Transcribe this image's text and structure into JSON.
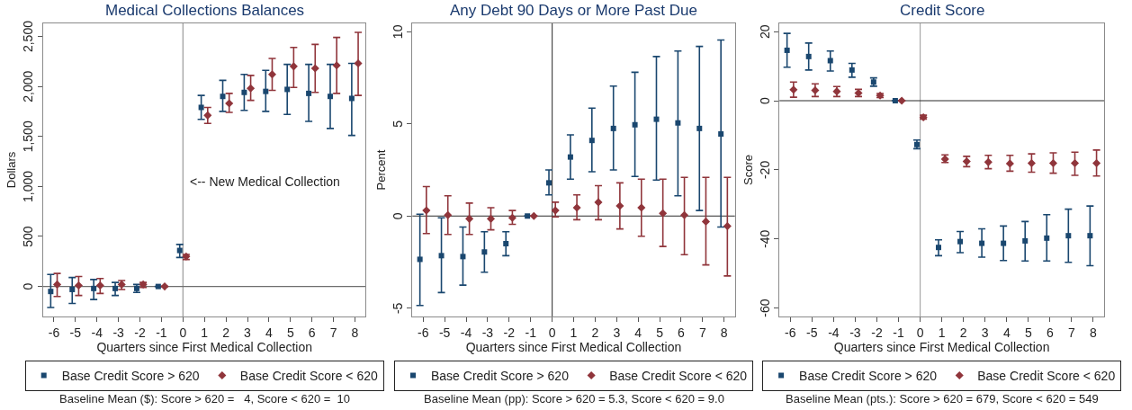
{
  "chart_data": [
    {
      "type": "scatter",
      "title": "Medical Collections Balances",
      "xlabel": "Quarters since First Medical Collection",
      "ylabel": "Dollars",
      "xlim": [
        -6.5,
        8.5
      ],
      "xticks": [
        -6,
        -5,
        -4,
        -3,
        -2,
        -1,
        0,
        1,
        2,
        3,
        4,
        5,
        6,
        7,
        8
      ],
      "ylim": [
        -300,
        2630
      ],
      "yticks": [
        0,
        500,
        {
          "value": 1000,
          "label": "1,000"
        },
        {
          "value": 1500,
          "label": "1,500"
        },
        {
          "value": 2000,
          "label": "2,000"
        },
        {
          "value": 2500,
          "label": "2,500"
        }
      ],
      "grid": false,
      "legend": "bottom",
      "series": [
        {
          "name": "Base Credit Score > 620",
          "color": "#1a476f",
          "marker": "square",
          "x": [
            -6.15,
            -5.15,
            -4.15,
            -3.15,
            -2.15,
            -1.15,
            -0.15,
            0.85,
            1.85,
            2.85,
            3.85,
            4.85,
            5.85,
            6.85,
            7.85
          ],
          "values": [
            -50,
            -30,
            -20,
            -20,
            -20,
            0,
            360,
            1790,
            1900,
            1940,
            1950,
            1970,
            1930,
            1900,
            1880
          ],
          "errors": [
            [
              -210,
              120
            ],
            [
              -170,
              90
            ],
            [
              -130,
              70
            ],
            [
              -90,
              40
            ],
            [
              -60,
              20
            ],
            null,
            [
              290,
              420
            ],
            [
              1670,
              1910
            ],
            [
              1750,
              2060
            ],
            [
              1760,
              2120
            ],
            [
              1750,
              2160
            ],
            [
              1720,
              2220
            ],
            [
              1650,
              2220
            ],
            [
              1580,
              2220
            ],
            [
              1510,
              2230
            ]
          ]
        },
        {
          "name": "Base Credit Score < 620",
          "color": "#90353b",
          "marker": "diamond",
          "x": [
            -5.85,
            -4.85,
            -3.85,
            -2.85,
            -1.85,
            -0.85,
            0.15,
            1.15,
            2.15,
            3.15,
            4.15,
            5.15,
            6.15,
            7.15,
            8.15
          ],
          "values": [
            20,
            10,
            10,
            20,
            20,
            0,
            300,
            1710,
            1830,
            1980,
            2120,
            2200,
            2180,
            2210,
            2230
          ],
          "errors": [
            [
              -100,
              130
            ],
            [
              -90,
              100
            ],
            [
              -70,
              80
            ],
            [
              -30,
              60
            ],
            [
              -10,
              40
            ],
            null,
            [
              270,
              320
            ],
            [
              1630,
              1790
            ],
            [
              1740,
              1930
            ],
            [
              1860,
              2110
            ],
            [
              1960,
              2280
            ],
            [
              1990,
              2390
            ],
            [
              1940,
              2420
            ],
            [
              1930,
              2490
            ],
            [
              1910,
              2540
            ]
          ]
        }
      ],
      "ref_lines": [
        {
          "axis": "x",
          "value": 0,
          "color": "#9a9a9a"
        },
        {
          "axis": "y",
          "value": 0,
          "color": "#6e6e6e"
        }
      ],
      "annotations": [
        {
          "text": "<-- New Medical Collection",
          "x": 0,
          "y": 1045
        },
        "Baseline Mean ($): Score > 620 =   4, Score < 620 =  10"
      ]
    },
    {
      "type": "scatter",
      "title": "Any Debt 90 Days or More Past Due",
      "xlabel": "Quarters since First Medical Collection",
      "ylabel": "Percent",
      "xlim": [
        -6.5,
        8.5
      ],
      "xticks": [
        -6,
        -5,
        -4,
        -3,
        -2,
        -1,
        0,
        1,
        2,
        3,
        4,
        5,
        6,
        7,
        8
      ],
      "ylim": [
        -5.45,
        10.45
      ],
      "yticks": [
        -5,
        0,
        5,
        10
      ],
      "grid": false,
      "legend": "bottom",
      "series": [
        {
          "name": "Base Credit Score > 620",
          "color": "#1a476f",
          "marker": "square",
          "x": [
            -6.15,
            -5.15,
            -4.15,
            -3.15,
            -2.15,
            -1.15,
            -0.15,
            0.85,
            1.85,
            2.85,
            3.85,
            4.85,
            5.85,
            6.85,
            7.85
          ],
          "values": [
            -2.35,
            -2.15,
            -2.2,
            -1.95,
            -1.5,
            0,
            1.8,
            3.2,
            4.1,
            4.75,
            4.95,
            5.25,
            5.05,
            4.75,
            4.45
          ],
          "errors": [
            [
              -4.85,
              0.1
            ],
            [
              -4.15,
              -0.1
            ],
            [
              -3.75,
              -0.6
            ],
            [
              -3.05,
              -0.85
            ],
            [
              -2.15,
              -0.85
            ],
            null,
            [
              1.15,
              2.5
            ],
            [
              2.0,
              4.4
            ],
            [
              2.4,
              5.85
            ],
            [
              2.5,
              7.05
            ],
            [
              2.15,
              7.8
            ],
            [
              1.95,
              8.65
            ],
            [
              1.1,
              8.95
            ],
            [
              0.3,
              9.2
            ],
            [
              -0.6,
              9.55
            ]
          ]
        },
        {
          "name": "Base Credit Score < 620",
          "color": "#90353b",
          "marker": "diamond",
          "x": [
            -5.85,
            -4.85,
            -3.85,
            -2.85,
            -1.85,
            -0.85,
            0.15,
            1.15,
            2.15,
            3.15,
            4.15,
            5.15,
            6.15,
            7.15,
            8.15
          ],
          "values": [
            0.3,
            0.05,
            -0.15,
            -0.15,
            -0.1,
            0,
            0.3,
            0.45,
            0.75,
            0.55,
            0.45,
            0.15,
            0.05,
            -0.3,
            -0.55
          ],
          "errors": [
            [
              -0.95,
              1.6
            ],
            [
              -1.0,
              1.1
            ],
            [
              -1.0,
              0.7
            ],
            [
              -0.75,
              0.45
            ],
            [
              -0.45,
              0.3
            ],
            null,
            [
              -0.05,
              0.75
            ],
            [
              -0.2,
              1.15
            ],
            [
              -0.2,
              1.65
            ],
            [
              -0.7,
              1.8
            ],
            [
              -1.1,
              2.0
            ],
            [
              -1.65,
              2.0
            ],
            [
              -2.1,
              2.1
            ],
            [
              -2.65,
              2.1
            ],
            [
              -3.25,
              2.1
            ]
          ]
        }
      ],
      "ref_lines": [
        {
          "axis": "x",
          "value": 0,
          "color": "#4a4a4a"
        },
        {
          "axis": "y",
          "value": 0,
          "color": "#2a2a2a"
        }
      ],
      "annotations": [
        "Baseline Mean (pp): Score > 620 = 5.3, Score < 620 = 9.0"
      ]
    },
    {
      "type": "scatter",
      "title": "Credit Score",
      "xlabel": "Quarters since First Medical Collection",
      "ylabel": "Score",
      "xlim": [
        -6.5,
        8.5
      ],
      "xticks": [
        -6,
        -5,
        -4,
        -3,
        -2,
        -1,
        0,
        1,
        2,
        3,
        4,
        5,
        6,
        7,
        8
      ],
      "ylim": [
        -62.5,
        22.4
      ],
      "yticks": [
        -60,
        -40,
        -20,
        0,
        20
      ],
      "grid": false,
      "legend": "bottom",
      "series": [
        {
          "name": "Base Credit Score > 620",
          "color": "#1a476f",
          "marker": "square",
          "x": [
            -6.15,
            -5.15,
            -4.15,
            -3.15,
            -2.15,
            -1.15,
            -0.15,
            0.85,
            1.85,
            2.85,
            3.85,
            4.85,
            5.85,
            6.85,
            7.85
          ],
          "values": [
            14.6,
            12.8,
            11.6,
            8.9,
            5.4,
            0,
            -12.7,
            -42.5,
            -40.8,
            -41.3,
            -41.3,
            -40.6,
            -39.8,
            -39.1,
            -39.1
          ],
          "errors": [
            [
              9.7,
              19.5
            ],
            [
              8.9,
              16.7
            ],
            [
              8.6,
              14.4
            ],
            [
              6.8,
              10.8
            ],
            [
              4.2,
              6.6
            ],
            null,
            [
              -13.9,
              -11.4
            ],
            [
              -44.9,
              -40.3
            ],
            [
              -44.0,
              -37.9
            ],
            [
              -45.3,
              -37.1
            ],
            [
              -46.3,
              -36.3
            ],
            [
              -46.4,
              -35.0
            ],
            [
              -46.4,
              -33.0
            ],
            [
              -46.8,
              -31.4
            ],
            [
              -47.8,
              -30.5
            ]
          ]
        },
        {
          "name": "Base Credit Score < 620",
          "color": "#90353b",
          "marker": "diamond",
          "x": [
            -5.85,
            -4.85,
            -3.85,
            -2.85,
            -1.85,
            -0.85,
            0.15,
            1.15,
            2.15,
            3.15,
            4.15,
            5.15,
            6.15,
            7.15,
            8.15
          ],
          "values": [
            3.2,
            3.0,
            2.7,
            2.2,
            1.5,
            0,
            -4.8,
            -16.9,
            -17.6,
            -17.8,
            -18.2,
            -18.1,
            -18.1,
            -18.1,
            -18.1
          ],
          "errors": [
            [
              1.0,
              5.4
            ],
            [
              1.2,
              4.9
            ],
            [
              1.2,
              4.1
            ],
            [
              1.2,
              3.3
            ],
            [
              0.9,
              2.1
            ],
            null,
            [
              -5.3,
              -4.2
            ],
            [
              -17.9,
              -15.7
            ],
            [
              -19.1,
              -16.1
            ],
            [
              -19.7,
              -15.8
            ],
            [
              -20.4,
              -15.8
            ],
            [
              -20.7,
              -15.4
            ],
            [
              -21.0,
              -15.1
            ],
            [
              -21.6,
              -14.9
            ],
            [
              -21.8,
              -14.3
            ]
          ]
        }
      ],
      "ref_lines": [
        {
          "axis": "x",
          "value": 0,
          "color": "#a8a8a8"
        },
        {
          "axis": "y",
          "value": 0,
          "color": "#2a2a2a"
        }
      ],
      "annotations": [
        "Baseline Mean (pts.): Score > 620 = 679, Score < 620 = 549"
      ]
    }
  ]
}
